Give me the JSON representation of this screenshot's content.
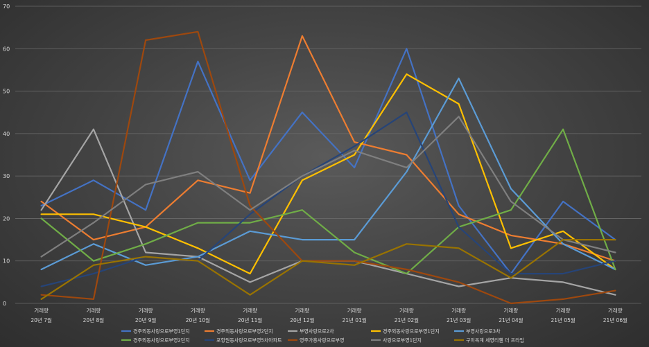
{
  "chart_data": {
    "type": "line",
    "title": "",
    "xlabel": "",
    "ylabel": "",
    "ylim": [
      0,
      70
    ],
    "yticks": [
      0,
      10,
      20,
      30,
      40,
      50,
      60,
      70
    ],
    "grid": true,
    "legend_position": "bottom",
    "categories": [
      {
        "top": "거래량",
        "bottom": "20년 7월"
      },
      {
        "top": "거래량",
        "bottom": "20년 8월"
      },
      {
        "top": "거래량",
        "bottom": "20년 9월"
      },
      {
        "top": "거래량",
        "bottom": "20년 10월"
      },
      {
        "top": "거래량",
        "bottom": "20년 11월"
      },
      {
        "top": "거래량",
        "bottom": "20년 12월"
      },
      {
        "top": "거래량",
        "bottom": "21년 01월"
      },
      {
        "top": "거래량",
        "bottom": "21년 02월"
      },
      {
        "top": "거래량",
        "bottom": "21년 03월"
      },
      {
        "top": "거래량",
        "bottom": "21년 04월"
      },
      {
        "top": "거래량",
        "bottom": "21년 05월"
      },
      {
        "top": "거래량",
        "bottom": "21년 06월"
      }
    ],
    "series": [
      {
        "name": "경주외동사랑으로부영1단지",
        "color": "#4472C4",
        "values": [
          23,
          29,
          22,
          57,
          29,
          45,
          32,
          60,
          23,
          7,
          24,
          15
        ]
      },
      {
        "name": "경주외동사랑으로부영2단지",
        "color": "#ED7D31",
        "values": [
          24,
          15,
          18,
          29,
          26,
          63,
          38,
          35,
          21,
          16,
          14,
          10
        ]
      },
      {
        "name": "부영사랑으로2차",
        "color": "#A5A5A5",
        "values": [
          22,
          41,
          12,
          11,
          5,
          10,
          10,
          7,
          4,
          6,
          5,
          2
        ]
      },
      {
        "name": "경주외동사랑으로부영1단지",
        "color": "#FFC000",
        "values": [
          21,
          21,
          18,
          13,
          7,
          29,
          35,
          54,
          47,
          13,
          17,
          8
        ]
      },
      {
        "name": "부영사랑으로3차",
        "color": "#5B9BD5",
        "values": [
          8,
          14,
          9,
          11,
          17,
          15,
          15,
          31,
          53,
          27,
          14,
          8
        ]
      },
      {
        "name": "경주외동사랑으로부영2단지",
        "color": "#70AD47",
        "values": [
          20,
          10,
          14,
          19,
          19,
          22,
          12,
          7,
          18,
          22,
          41,
          8
        ]
      },
      {
        "name": "포항원동사랑으로부영5차아파트",
        "color": "#264478",
        "values": [
          4,
          7,
          11,
          10,
          21,
          30,
          37,
          45,
          18,
          7,
          7,
          10
        ]
      },
      {
        "name": "영주가흥사랑으로부영",
        "color": "#9E480E",
        "values": [
          2,
          1,
          62,
          64,
          23,
          10,
          10,
          8,
          5,
          0,
          1,
          3
        ]
      },
      {
        "name": "사랑으로부영1단지",
        "color": "#7F7F7F",
        "values": [
          11,
          19,
          28,
          31,
          22,
          30,
          36,
          32,
          44,
          24,
          15,
          12
        ]
      },
      {
        "name": "구미옥계 세영리첼 더 프라임",
        "color": "#997300",
        "values": [
          1,
          9,
          11,
          10,
          2,
          10,
          9,
          14,
          13,
          6,
          15,
          15
        ]
      }
    ]
  }
}
